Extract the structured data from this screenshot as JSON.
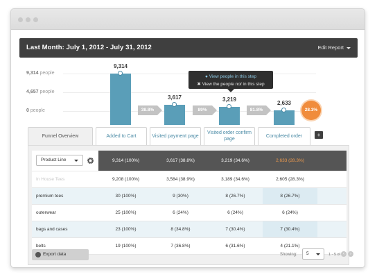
{
  "header": {
    "title": "Last Month: July 1, 2012 - July 31, 2012",
    "edit_report": "Edit Report"
  },
  "y_labels": [
    {
      "value": "9,314",
      "unit": "people"
    },
    {
      "value": "4,657",
      "unit": "people"
    },
    {
      "value": "0",
      "unit": "people"
    }
  ],
  "funnel": {
    "steps": [
      {
        "label": "Added to Cart",
        "value": "9,314",
        "count": 9314
      },
      {
        "label": "Visited payment page",
        "value": "3,617",
        "count": 3617
      },
      {
        "label_line1": "Visited order confirm",
        "label_line2": "page",
        "value": "3,219",
        "count": 3219
      },
      {
        "label": "Completed order",
        "value": "2,633",
        "count": 2633
      }
    ],
    "conversions": [
      "38.8%",
      "89%",
      "81.8%"
    ],
    "final_rate": "28.3%",
    "max": 9314
  },
  "tabs": {
    "overview": "Funnel Overview"
  },
  "tooltip": {
    "line1": "View people in this step",
    "line2_pre": "View the people ",
    "line2_em": "not",
    "line2_post": " in this step"
  },
  "table": {
    "dropdown": "Product Line",
    "header": [
      "9,314 (100%)",
      "3,617 (38.8%)",
      "3,219 (34.6%)",
      "2,633 (28.3%)"
    ],
    "rows": [
      {
        "label": "In House Tees",
        "cells": [
          "9,208 (100%)",
          "3,584 (38.9%)",
          "3,189 (34.6%)",
          "2,605 (28.3%)"
        ]
      },
      {
        "label": "premium tees",
        "cells": [
          "30 (100%)",
          "9 (30%)",
          "8 (26.7%)",
          "8 (26.7%)"
        ]
      },
      {
        "label": "outerwear",
        "cells": [
          "25 (100%)",
          "6 (24%)",
          "6 (24%)",
          "6 (24%)"
        ]
      },
      {
        "label": "bags and cases",
        "cells": [
          "23 (100%)",
          "8 (34.8%)",
          "7 (30.4%)",
          "7 (30.4%)"
        ]
      },
      {
        "label": "belts",
        "cells": [
          "19 (100%)",
          "7 (36.8%)",
          "6 (31.6%)",
          "4 (21.1%)"
        ]
      }
    ]
  },
  "footer": {
    "export": "Export data",
    "showing_label": "Showing:",
    "page_size": "5",
    "page_info": "1 - 5 of 16"
  },
  "colors": {
    "bar": "#5a9eb8",
    "accent_orange": "#f08c3c",
    "header_bg": "#3f3f3f",
    "link": "#4a8aa5"
  }
}
